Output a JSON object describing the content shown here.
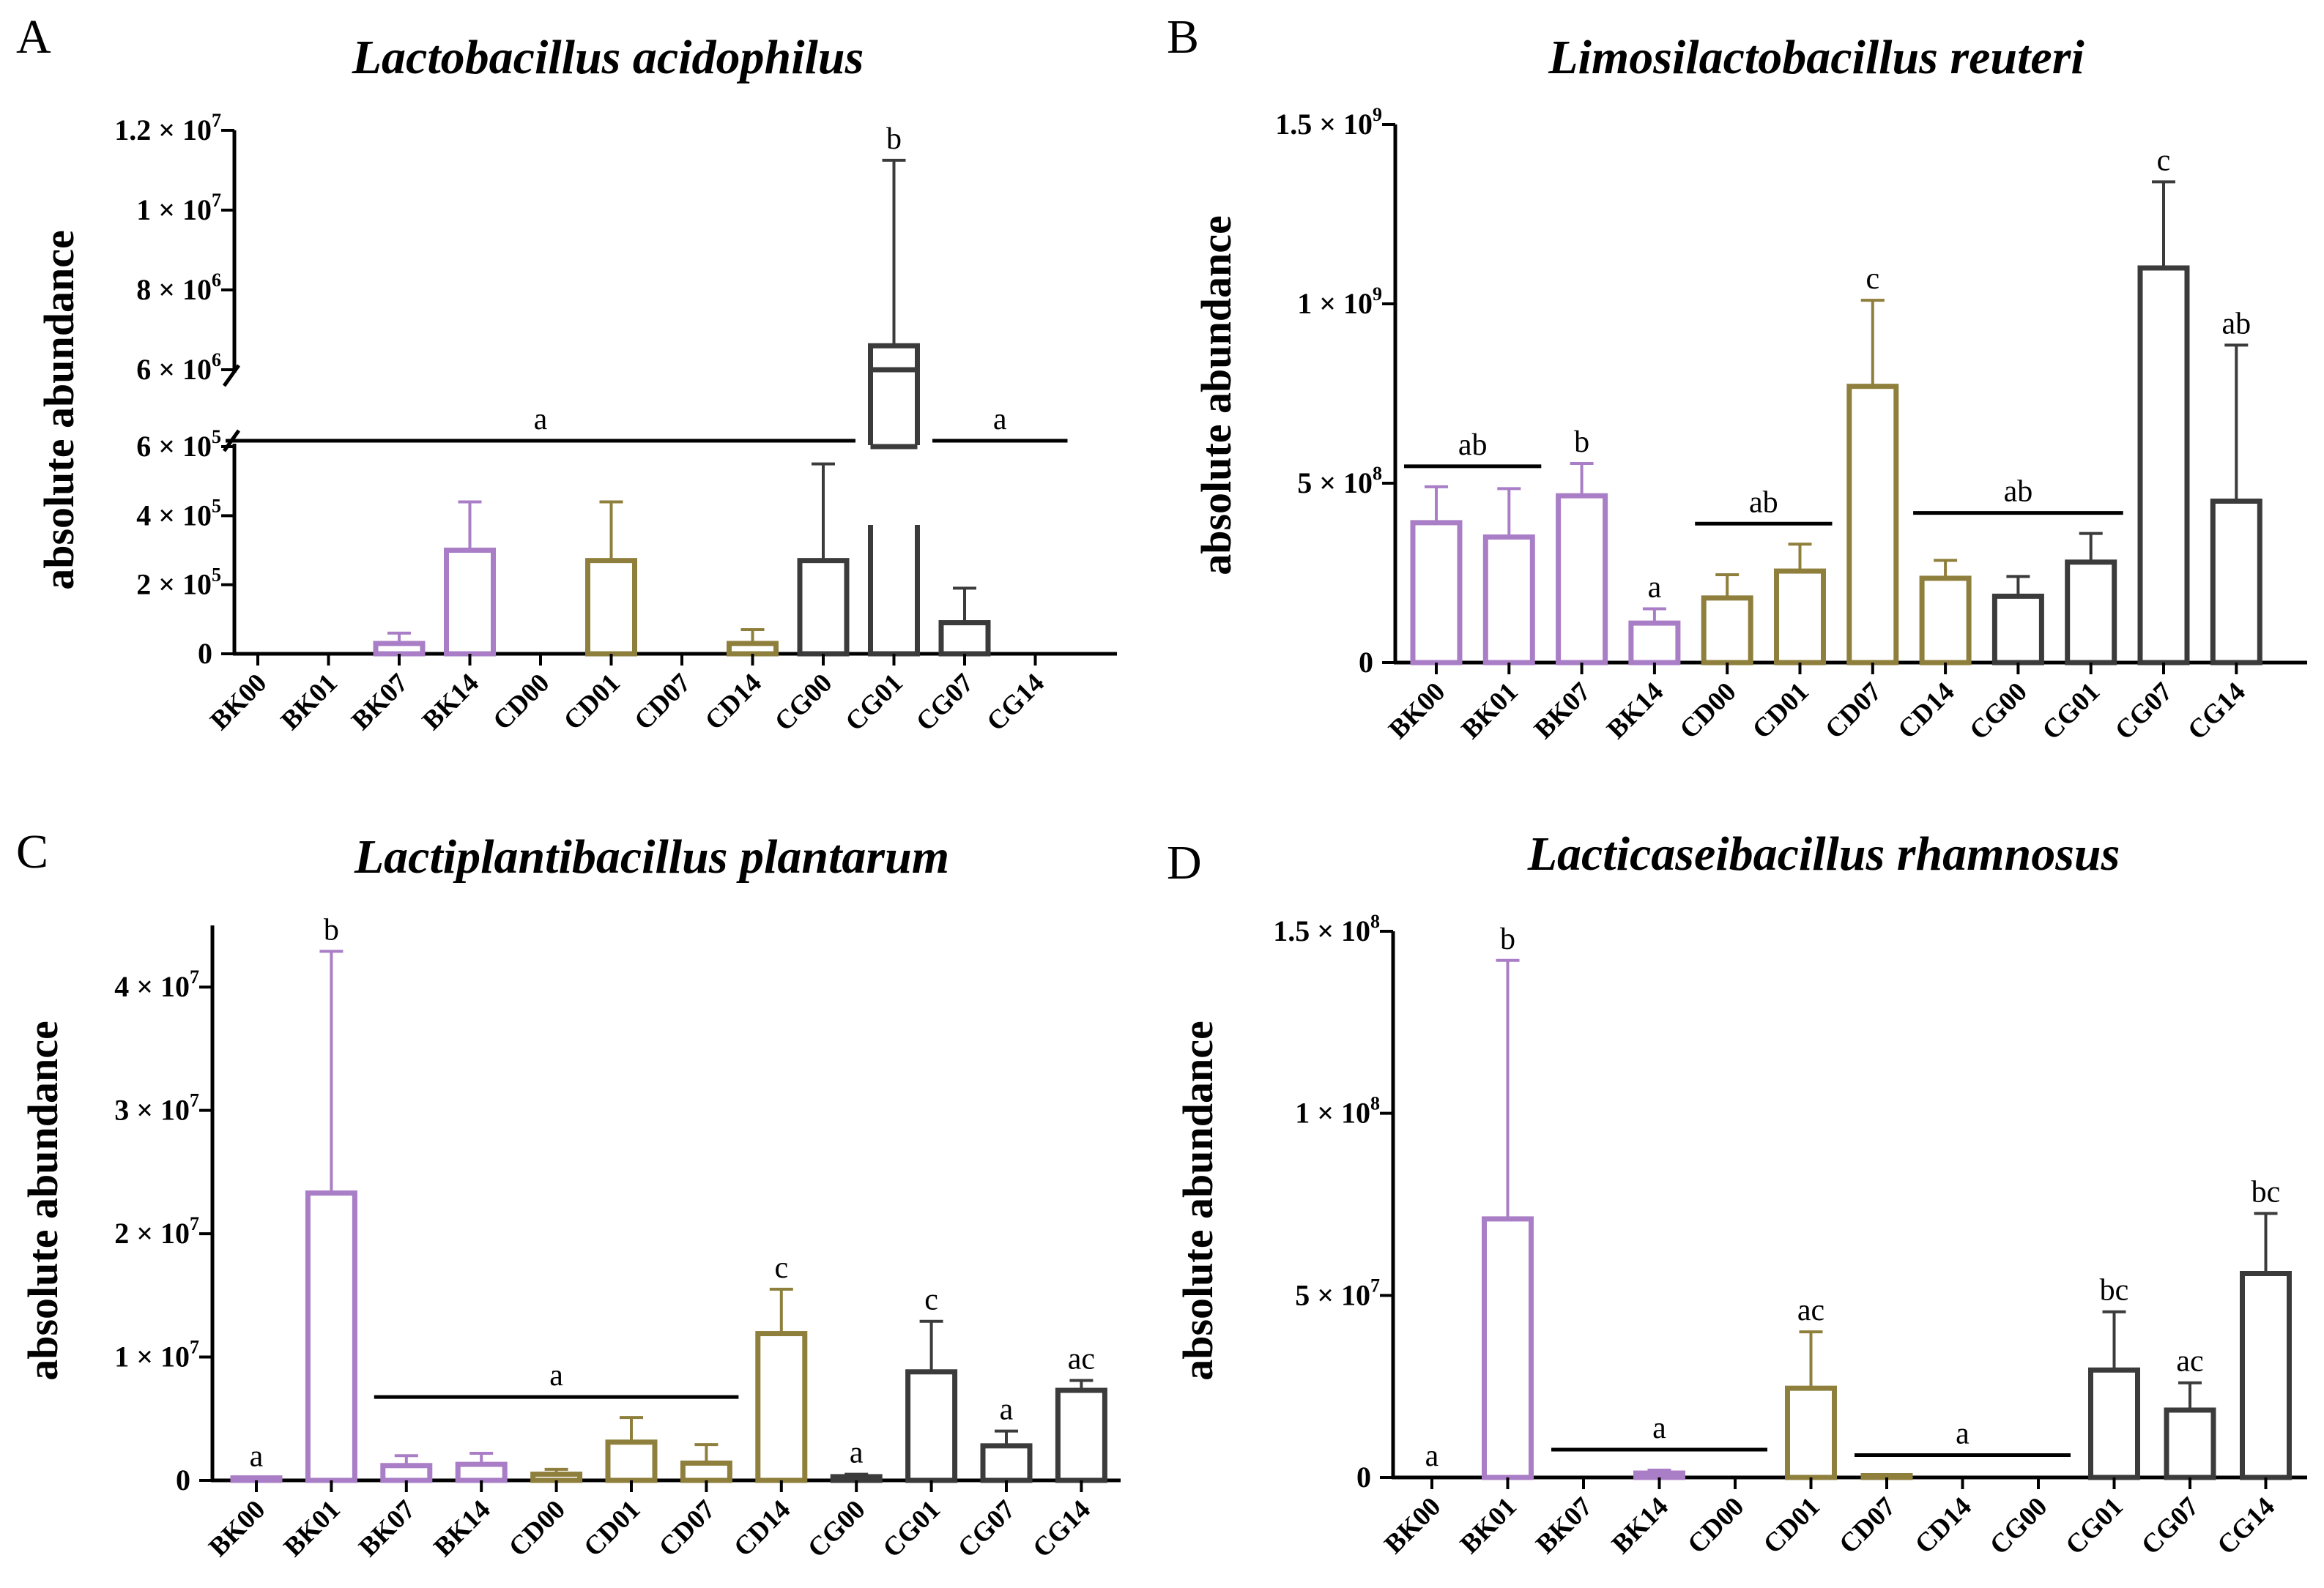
{
  "colors": {
    "BK": "#a97ec6",
    "CD": "#8f7f3c",
    "CG": "#3b3b3b",
    "axis": "#000000"
  },
  "chart_data": [
    {
      "panel": "A",
      "type": "bar",
      "title": "Lactobacillus acidophilus",
      "ylabel": "absolute abundance",
      "categories": [
        "BK00",
        "BK01",
        "BK07",
        "BK14",
        "CD00",
        "CD01",
        "CD07",
        "CD14",
        "CG00",
        "CG01",
        "CG07",
        "CG14"
      ],
      "values": [
        0,
        0,
        30000,
        300000,
        0,
        270000,
        0,
        30000,
        270000,
        6600000,
        90000,
        0
      ],
      "errors": [
        0,
        0,
        30000,
        140000,
        0,
        170000,
        0,
        40000,
        280000,
        4650000,
        100000,
        0
      ],
      "broken_axis": {
        "lower": [
          0,
          600000
        ],
        "upper": [
          6000000,
          12000000
        ]
      },
      "yticks": [
        {
          "v": 0,
          "m": "0",
          "e": ""
        },
        {
          "v": 200000,
          "m": "2 × 10",
          "e": "5"
        },
        {
          "v": 400000,
          "m": "4 × 10",
          "e": "5"
        },
        {
          "v": 600000,
          "m": "6 × 10",
          "e": "5"
        },
        {
          "v": 6000000,
          "m": "6 × 10",
          "e": "6"
        },
        {
          "v": 8000000,
          "m": "8 × 10",
          "e": "6"
        },
        {
          "v": 10000000,
          "m": "1 × 10",
          "e": "7"
        },
        {
          "v": 12000000,
          "m": "1.2 × 10",
          "e": "7"
        }
      ],
      "annotations": [
        {
          "text": "a",
          "bar_from": 0,
          "bar_to": 8
        },
        {
          "text": "b",
          "bar": 9
        },
        {
          "text": "a",
          "bar_from": 10,
          "bar_to": 11
        }
      ]
    },
    {
      "panel": "B",
      "type": "bar",
      "title": "Limosilactobacillus reuteri",
      "ylabel": "absolute abundance",
      "categories": [
        "BK00",
        "BK01",
        "BK07",
        "BK14",
        "CD00",
        "CD01",
        "CD07",
        "CD14",
        "CG00",
        "CG01",
        "CG07",
        "CG14"
      ],
      "values": [
        390000000,
        350000000,
        465000000,
        110000000,
        180000000,
        255000000,
        770000000,
        235000000,
        185000000,
        280000000,
        1100000000,
        450000000
      ],
      "errors": [
        100000000,
        135000000,
        90000000,
        40000000,
        65000000,
        75000000,
        240000000,
        50000000,
        55000000,
        80000000,
        240000000,
        435000000
      ],
      "ylim": [
        0,
        1500000000
      ],
      "yticks": [
        {
          "v": 0,
          "m": "0",
          "e": ""
        },
        {
          "v": 500000000,
          "m": "5 × 10",
          "e": "8"
        },
        {
          "v": 1000000000,
          "m": "1 × 10",
          "e": "9"
        },
        {
          "v": 1500000000,
          "m": "1.5 × 10",
          "e": "9"
        }
      ],
      "annotations": [
        {
          "text": "ab",
          "bar_from": 0,
          "bar_to": 1
        },
        {
          "text": "b",
          "bar": 2
        },
        {
          "text": "a",
          "bar": 3
        },
        {
          "text": "ab",
          "bar_from": 4,
          "bar_to": 5
        },
        {
          "text": "c",
          "bar": 6
        },
        {
          "text": "ab",
          "bar_from": 7,
          "bar_to": 9
        },
        {
          "text": "c",
          "bar": 10
        },
        {
          "text": "ab",
          "bar": 11
        }
      ]
    },
    {
      "panel": "C",
      "type": "bar",
      "title": "Lactiplantibacillus plantarum",
      "ylabel": "absolute abundance",
      "categories": [
        "BK00",
        "BK01",
        "BK07",
        "BK14",
        "CD00",
        "CD01",
        "CD07",
        "CD14",
        "CG00",
        "CG01",
        "CG07",
        "CG14"
      ],
      "values": [
        200000,
        23300000,
        1200000,
        1300000,
        500000,
        3100000,
        1400000,
        11900000,
        300000,
        8800000,
        2800000,
        7300000
      ],
      "errors": [
        0,
        19600000,
        800000,
        900000,
        400000,
        2000000,
        1500000,
        3600000,
        200000,
        4100000,
        1200000,
        800000
      ],
      "ylim": [
        0,
        45000000
      ],
      "yticks": [
        {
          "v": 0,
          "m": "0",
          "e": ""
        },
        {
          "v": 10000000,
          "m": "1 × 10",
          "e": "7"
        },
        {
          "v": 20000000,
          "m": "2 × 10",
          "e": "7"
        },
        {
          "v": 30000000,
          "m": "3 × 10",
          "e": "7"
        },
        {
          "v": 40000000,
          "m": "4 × 10",
          "e": "7"
        }
      ],
      "annotations": [
        {
          "text": "a",
          "bar": 0
        },
        {
          "text": "b",
          "bar": 1
        },
        {
          "text": "a",
          "bar_from": 2,
          "bar_to": 6
        },
        {
          "text": "c",
          "bar": 7
        },
        {
          "text": "a",
          "bar": 8
        },
        {
          "text": "c",
          "bar": 9
        },
        {
          "text": "a",
          "bar": 10
        },
        {
          "text": "ac",
          "bar": 11
        }
      ]
    },
    {
      "panel": "D",
      "type": "bar",
      "title": "Lacticaseibacillus rhamnosus",
      "ylabel": "absolute abundance",
      "categories": [
        "BK00",
        "BK01",
        "BK07",
        "BK14",
        "CD00",
        "CD01",
        "CD07",
        "CD14",
        "CG00",
        "CG01",
        "CG07",
        "CG14"
      ],
      "values": [
        0,
        71000000,
        0,
        1200000,
        0,
        24500000,
        500000,
        0,
        0,
        29500000,
        18500000,
        56000000
      ],
      "errors": [
        0,
        71000000,
        0,
        800000,
        0,
        15500000,
        0,
        0,
        0,
        16000000,
        7500000,
        16500000
      ],
      "ylim": [
        0,
        150000000
      ],
      "yticks": [
        {
          "v": 0,
          "m": "0",
          "e": ""
        },
        {
          "v": 50000000,
          "m": "5 × 10",
          "e": "7"
        },
        {
          "v": 100000000,
          "m": "1 × 10",
          "e": "8"
        },
        {
          "v": 150000000,
          "m": "1.5 × 10",
          "e": "8"
        }
      ],
      "annotations": [
        {
          "text": "a",
          "bar": 0
        },
        {
          "text": "b",
          "bar": 1
        },
        {
          "text": "a",
          "bar_from": 2,
          "bar_to": 4
        },
        {
          "text": "ac",
          "bar": 5
        },
        {
          "text": "a",
          "bar_from": 6,
          "bar_to": 8
        },
        {
          "text": "bc",
          "bar": 9
        },
        {
          "text": "ac",
          "bar": 10
        },
        {
          "text": "bc",
          "bar": 11
        }
      ]
    }
  ]
}
